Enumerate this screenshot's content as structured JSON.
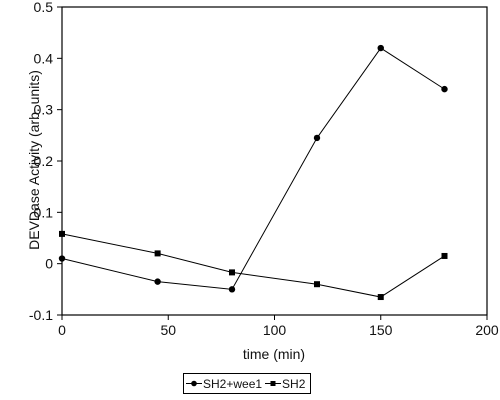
{
  "chart_data": {
    "type": "line",
    "xlabel": "time (min)",
    "ylabel": "DEVDase Activity (arb. units)",
    "xlim": [
      0,
      200
    ],
    "ylim": [
      -0.1,
      0.5
    ],
    "xticks": [
      "0",
      "50",
      "100",
      "150",
      "200"
    ],
    "yticks": [
      "-0.1",
      "0",
      "0.1",
      "0.2",
      "0.3",
      "0.4",
      "0.5"
    ],
    "grid": false,
    "legend_position": "bottom",
    "series": [
      {
        "name": "SH2+wee1",
        "marker": "circle",
        "color": "#000000",
        "x": [
          0,
          45,
          80,
          120,
          150,
          180
        ],
        "y": [
          0.01,
          -0.035,
          -0.05,
          0.245,
          0.42,
          0.34
        ]
      },
      {
        "name": "SH2",
        "marker": "square",
        "color": "#000000",
        "x": [
          0,
          45,
          80,
          120,
          150,
          180
        ],
        "y": [
          0.058,
          0.02,
          -0.017,
          -0.04,
          -0.065,
          0.015
        ]
      }
    ]
  }
}
